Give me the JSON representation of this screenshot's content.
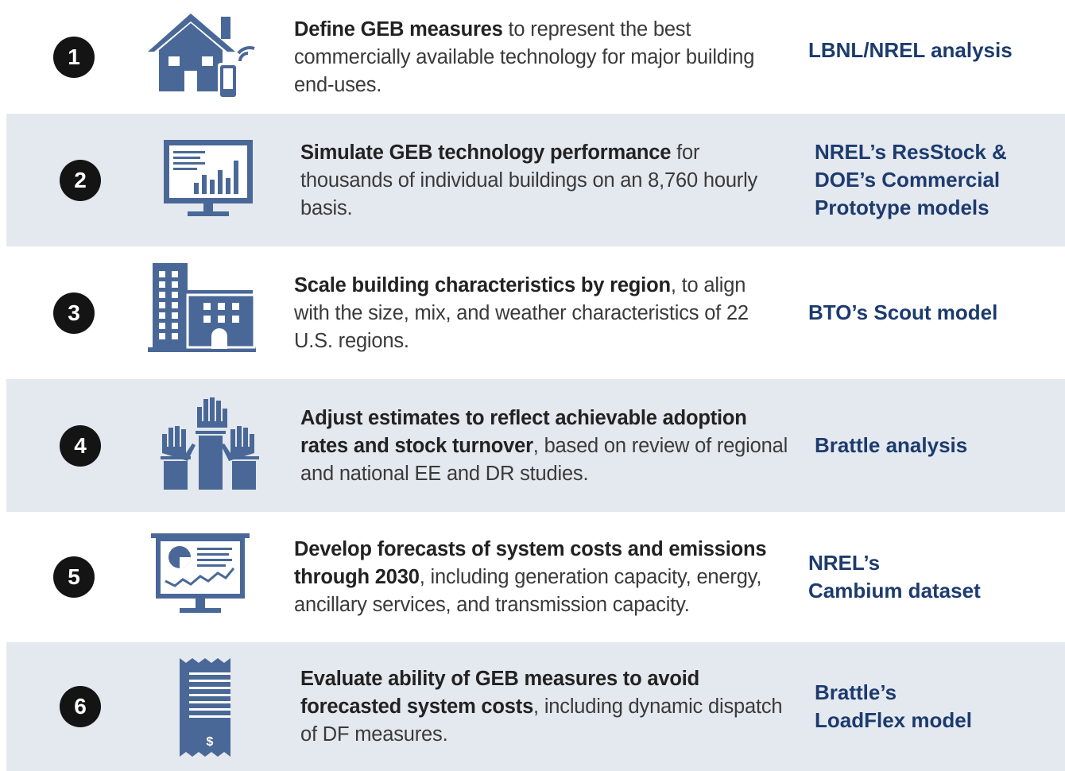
{
  "steps": [
    {
      "number": "1",
      "bold": "Define GEB measures",
      "text": " to represent the best commercially available technology for major building end-uses.",
      "source": [
        "LBNL/NREL analysis"
      ]
    },
    {
      "number": "2",
      "bold": "Simulate GEB technology performance",
      "text": " for thousands of individual buildings on an 8,760 hourly basis.",
      "source": [
        "NREL’s ResStock &",
        "DOE’s Commercial",
        "Prototype models"
      ]
    },
    {
      "number": "3",
      "bold": "Scale building characteristics by region",
      "text": ", to align with the size, mix, and weather characteristics of 22 U.S. regions.",
      "source": [
        "BTO’s Scout model"
      ]
    },
    {
      "number": "4",
      "bold": "Adjust estimates to reflect achievable adoption rates and stock turnover",
      "text": ", based on review of regional and national EE and DR studies.",
      "source": [
        "Brattle analysis"
      ]
    },
    {
      "number": "5",
      "bold": "Develop forecasts of system costs and emissions through 2030",
      "text": ", including generation capacity, energy, ancillary services, and transmission capacity.",
      "source": [
        "NREL’s",
        "Cambium dataset"
      ]
    },
    {
      "number": "6",
      "bold": "Evaluate ability of GEB measures to avoid forecasted system costs",
      "text": ", including dynamic dispatch of DF measures.",
      "source": [
        "Brattle’s",
        "LoadFlex model"
      ]
    }
  ],
  "icon_text": "$"
}
